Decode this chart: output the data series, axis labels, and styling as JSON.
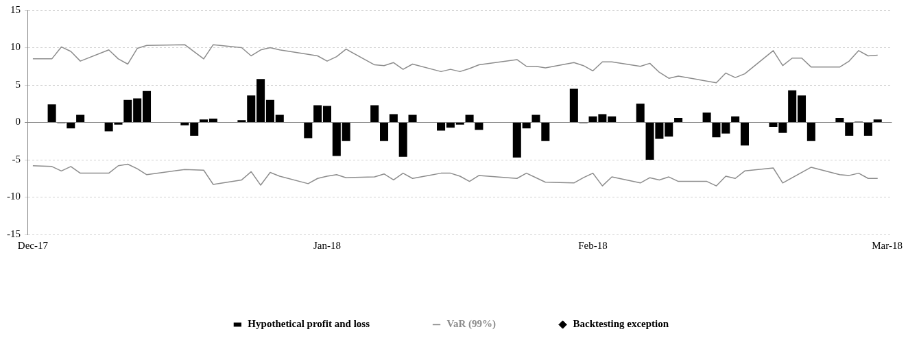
{
  "chart_data": {
    "type": "bar",
    "legend": "bottom",
    "grid": "y",
    "ylim": [
      -15,
      15
    ],
    "yticks": [
      -15,
      -10,
      -5,
      0,
      5,
      10,
      15
    ],
    "categories": [
      "Dec-17",
      null,
      null,
      null,
      null,
      null,
      null,
      null,
      null,
      null,
      null,
      null,
      null,
      null,
      null,
      null,
      null,
      null,
      null,
      null,
      null,
      null,
      null,
      null,
      null,
      null,
      null,
      null,
      null,
      null,
      null,
      "Jan-18",
      null,
      null,
      null,
      null,
      null,
      null,
      null,
      null,
      null,
      null,
      null,
      null,
      null,
      null,
      null,
      null,
      null,
      null,
      null,
      null,
      null,
      null,
      null,
      null,
      null,
      null,
      null,
      "Feb-18",
      null,
      null,
      null,
      null,
      null,
      null,
      null,
      null,
      null,
      null,
      null,
      null,
      null,
      null,
      null,
      null,
      null,
      null,
      null,
      null,
      null,
      null,
      null,
      null,
      null,
      null,
      null,
      null,
      null,
      null,
      "Mar-18"
    ],
    "series": [
      {
        "name": "Hypothetical profit and loss",
        "color": "#000000",
        "values": [
          null,
          null,
          2.4,
          -0.1,
          -0.8,
          1.0,
          null,
          null,
          -1.2,
          -0.3,
          3.0,
          3.2,
          4.2,
          null,
          null,
          null,
          -0.4,
          -1.8,
          0.4,
          0.5,
          null,
          null,
          0.3,
          3.6,
          5.8,
          3.0,
          1.0,
          null,
          null,
          -2.1,
          2.3,
          2.2,
          -4.5,
          -2.5,
          null,
          null,
          2.3,
          -2.5,
          1.1,
          -4.6,
          1.0,
          null,
          null,
          -1.1,
          -0.7,
          -0.3,
          1.0,
          -1.0,
          null,
          null,
          null,
          -4.7,
          -0.8,
          1.0,
          -2.5,
          null,
          null,
          4.5,
          -0.1,
          0.8,
          1.1,
          0.8,
          null,
          null,
          2.5,
          -5.0,
          -2.2,
          -1.9,
          0.6,
          null,
          null,
          1.3,
          -2.0,
          -1.5,
          0.8,
          -3.1,
          null,
          null,
          -0.6,
          -1.4,
          4.3,
          3.6,
          -2.5,
          null,
          null,
          0.6,
          -1.8,
          0.1,
          -1.8,
          0.4,
          null
        ]
      },
      {
        "name": "VaR (99%)",
        "type": "line",
        "color": "#8c8c8c",
        "values": [
          8.5,
          null,
          8.5,
          10.1,
          9.5,
          8.2,
          null,
          null,
          9.7,
          8.5,
          7.8,
          9.9,
          10.3,
          null,
          null,
          null,
          10.4,
          null,
          8.5,
          10.4,
          null,
          null,
          10.0,
          8.9,
          9.7,
          10.0,
          9.7,
          null,
          null,
          9.1,
          8.9,
          8.2,
          8.8,
          9.8,
          null,
          null,
          7.7,
          7.6,
          8.0,
          7.1,
          7.8,
          null,
          null,
          6.8,
          7.1,
          6.8,
          7.2,
          7.7,
          null,
          null,
          null,
          8.4,
          7.5,
          7.5,
          7.3,
          null,
          null,
          8.0,
          7.6,
          6.9,
          8.1,
          8.1,
          null,
          null,
          7.5,
          7.9,
          6.7,
          5.9,
          6.2,
          null,
          null,
          null,
          5.3,
          6.6,
          6.0,
          6.5,
          null,
          null,
          9.6,
          7.6,
          8.6,
          8.6,
          7.4,
          null,
          null,
          7.4,
          8.2,
          9.6,
          8.9,
          9.0,
          null
        ]
      },
      {
        "type": "line",
        "color": "#8c8c8c",
        "values": [
          -5.8,
          null,
          -5.9,
          -6.5,
          -5.9,
          -6.8,
          null,
          null,
          -6.8,
          -5.8,
          -5.6,
          -6.2,
          -7.0,
          null,
          null,
          null,
          -6.3,
          null,
          -6.4,
          -8.3,
          null,
          null,
          -7.7,
          -6.6,
          -8.4,
          -6.7,
          -7.2,
          null,
          null,
          -8.2,
          -7.5,
          -7.2,
          -7.0,
          -7.4,
          null,
          null,
          -7.3,
          -6.9,
          -7.7,
          -6.8,
          -7.5,
          null,
          null,
          -6.8,
          -6.8,
          -7.2,
          -7.9,
          -7.1,
          null,
          null,
          null,
          -7.5,
          -6.8,
          null,
          -8.0,
          null,
          null,
          -8.1,
          -7.4,
          -6.8,
          -8.5,
          -7.3,
          null,
          null,
          -8.1,
          -7.4,
          -7.7,
          -7.3,
          -7.9,
          null,
          null,
          -7.9,
          -8.5,
          -7.2,
          -7.5,
          -6.5,
          null,
          null,
          -6.1,
          -8.1,
          null,
          null,
          -6.0,
          null,
          null,
          -7.0,
          -7.1,
          -6.8,
          -7.5,
          -7.5,
          null
        ]
      },
      {
        "name": "Backtesting exception",
        "type": "scatter",
        "marker": "diamond",
        "color": "#000000",
        "values": [
          null,
          null,
          null,
          null,
          null,
          null,
          null,
          null,
          null,
          null,
          null,
          null,
          null,
          null,
          null,
          null,
          null,
          null,
          null,
          null,
          null,
          null,
          null,
          null,
          null,
          null,
          null,
          null,
          null,
          null,
          null,
          null,
          null,
          null,
          null,
          null,
          null,
          null,
          null,
          null,
          null,
          null,
          null,
          null,
          null,
          null,
          null,
          null,
          null,
          null,
          null,
          null,
          null,
          null,
          null,
          null,
          null,
          null,
          null,
          null,
          null,
          null,
          null,
          null,
          null,
          null,
          null,
          null,
          null,
          null,
          null,
          null,
          null,
          null,
          null,
          null,
          null,
          null,
          null,
          null,
          null,
          null,
          null,
          null,
          null,
          null,
          null,
          null,
          null,
          null,
          null
        ]
      }
    ]
  }
}
